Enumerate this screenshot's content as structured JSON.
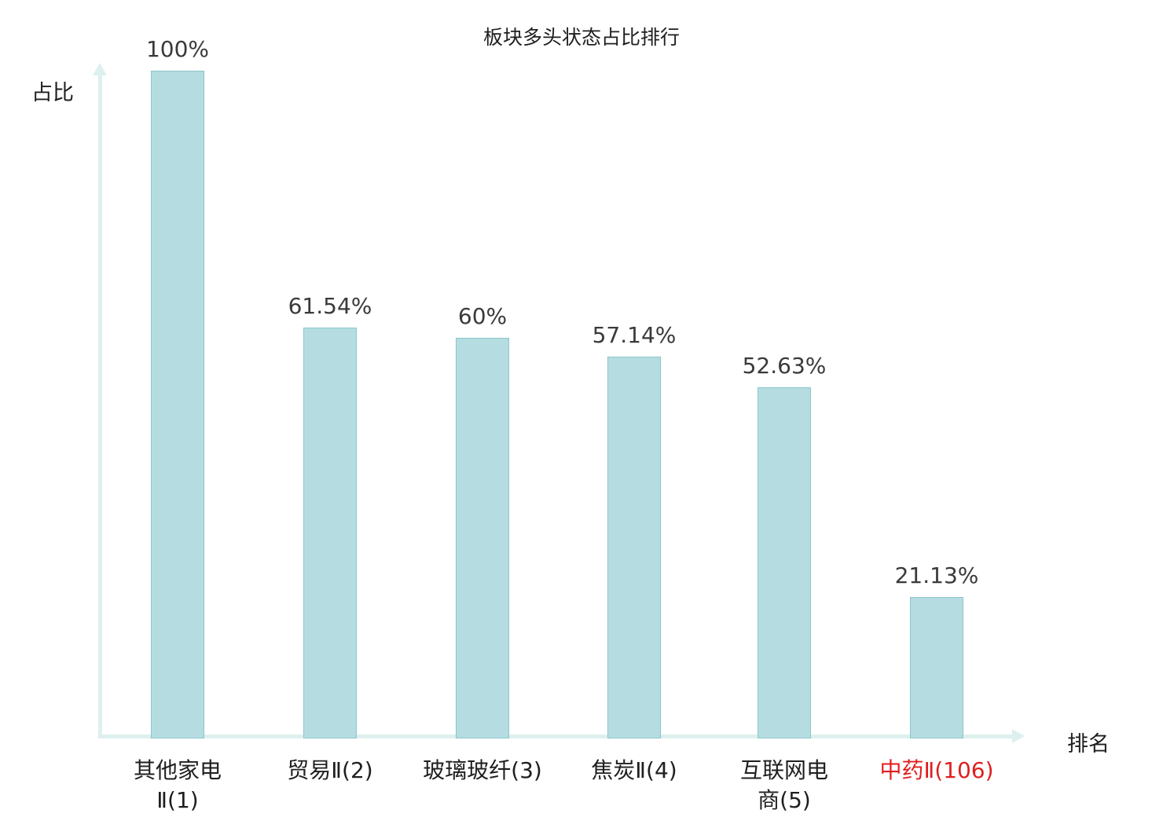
{
  "title": "板块多头状态占比排行",
  "axes": {
    "y_label": "占比",
    "x_label": "排名"
  },
  "colors": {
    "bar_fill": "#b5dde1",
    "bar_border": "#8cc5cb",
    "axis": "#ddf0ee",
    "value_label": "#3a3a3a",
    "tick_label": "#1f1f1f",
    "highlight": "#e01e1e"
  },
  "chart_data": {
    "type": "bar",
    "title": "板块多头状态占比排行",
    "xlabel": "排名",
    "ylabel": "占比",
    "ylim": [
      0,
      100
    ],
    "grid": false,
    "legend": false,
    "categories": [
      "其他家电Ⅱ(1)",
      "贸易Ⅱ(2)",
      "玻璃玻纤(3)",
      "焦炭Ⅱ(4)",
      "互联网电商(5)",
      "中药Ⅱ(106)"
    ],
    "category_lines": [
      [
        "其他家电",
        "Ⅱ(1)"
      ],
      [
        "贸易Ⅱ(2)"
      ],
      [
        "玻璃玻纤(3)"
      ],
      [
        "焦炭Ⅱ(4)"
      ],
      [
        "互联网电",
        "商(5)"
      ],
      [
        "中药Ⅱ(106)"
      ]
    ],
    "values": [
      100,
      61.54,
      60,
      57.14,
      52.63,
      21.13
    ],
    "value_labels": [
      "100%",
      "61.54%",
      "60%",
      "57.14%",
      "52.63%",
      "21.13%"
    ],
    "highlight_index": 5
  }
}
